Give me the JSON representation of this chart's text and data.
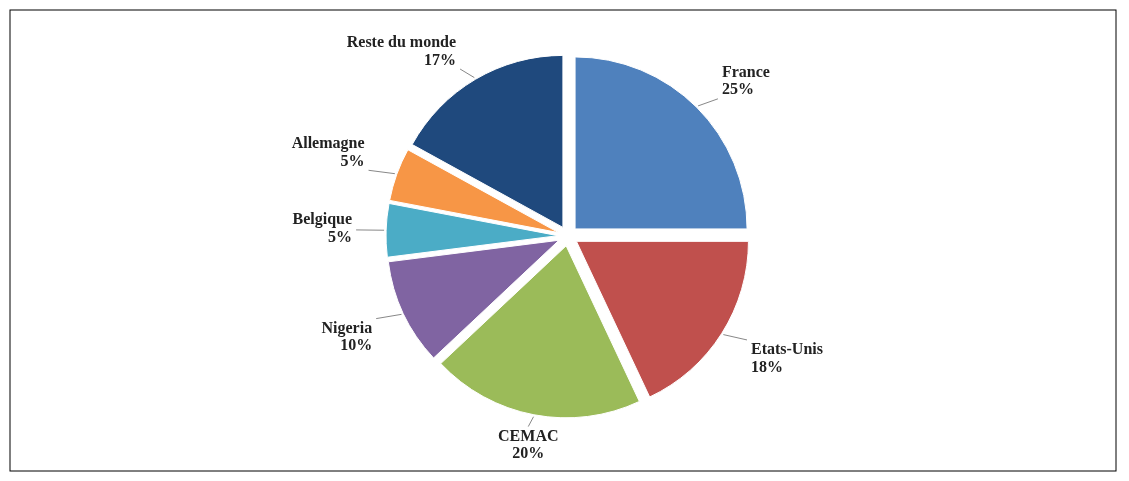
{
  "chart_data": {
    "type": "pie",
    "categories": [
      "France",
      "Etats-Unis",
      "CEMAC",
      "Nigeria",
      "Belgique",
      "Allemagne",
      "Reste du monde"
    ],
    "values": [
      25,
      18,
      20,
      10,
      5,
      5,
      17
    ],
    "value_labels": [
      "25%",
      "18%",
      "20%",
      "10%",
      "5%",
      "5%",
      "17%"
    ],
    "colors": [
      "#4f81bd",
      "#c0504d",
      "#9bbb59",
      "#8064a2",
      "#4bacc6",
      "#f79646",
      "#1f497d"
    ]
  }
}
